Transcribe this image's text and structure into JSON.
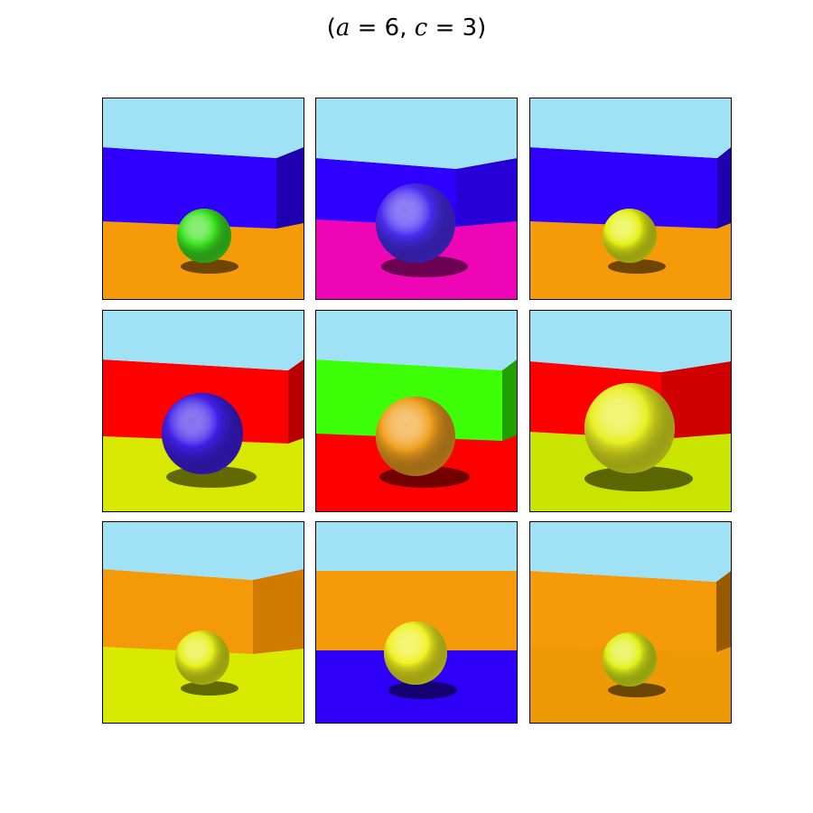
{
  "title": {
    "open": "(",
    "a_symbol": "a",
    "a_value": " = 6, ",
    "c_symbol": "c",
    "c_value": " = 3)"
  },
  "panels": [
    {
      "name": "scene-1",
      "sky": "#9fe2f6",
      "wall": "#2f00ff",
      "wall_side": "#1e00b0",
      "floor": "#f59a08",
      "ball": "#3de31f",
      "corner": "right",
      "ball_size": "small"
    },
    {
      "name": "scene-2",
      "sky": "#9fe2f6",
      "wall": "#2f00ff",
      "wall_side": "#2700d8",
      "floor": "#ee06b6",
      "ball": "#4a2cf0",
      "corner": "center",
      "ball_size": "large"
    },
    {
      "name": "scene-3",
      "sky": "#9fe2f6",
      "wall": "#2f00ff",
      "wall_side": "#1e00b0",
      "floor": "#f59a08",
      "ball": "#e5f016",
      "corner": "right",
      "ball_size": "small"
    },
    {
      "name": "scene-4",
      "sky": "#9fe2f6",
      "wall": "#ff0000",
      "wall_side": "#b80000",
      "floor": "#d8e800",
      "ball": "#3f1fe8",
      "corner": "right",
      "ball_size": "large"
    },
    {
      "name": "scene-5",
      "sky": "#9fe2f6",
      "wall": "#3cff08",
      "wall_side": "#1fa000",
      "floor": "#ff0000",
      "ball": "#f0a020",
      "corner": "right-edge",
      "ball_size": "large"
    },
    {
      "name": "scene-6",
      "sky": "#9fe2f6",
      "wall": "#ff0000",
      "wall_side": "#d00000",
      "floor": "#c8e400",
      "ball": "#e8ee20",
      "corner": "center",
      "ball_size": "xlarge"
    },
    {
      "name": "scene-7",
      "sky": "#9fe2f6",
      "wall": "#f49a08",
      "wall_side": "#d07a00",
      "floor": "#d8ea00",
      "ball": "#e6ee18",
      "corner": "right",
      "ball_size": "small"
    },
    {
      "name": "scene-8",
      "sky": "#9fe2f6",
      "wall": "#f59a08",
      "wall_side": "#c77800",
      "floor": "#2e00f8",
      "ball": "#f0f020",
      "corner": "none",
      "ball_size": "medium"
    },
    {
      "name": "scene-9",
      "sky": "#9fe2f6",
      "wall": "#f59a08",
      "wall_side": "#9a5a00",
      "floor": "#ee9a06",
      "ball": "#dff018",
      "corner": "right-edge",
      "ball_size": "small"
    }
  ]
}
